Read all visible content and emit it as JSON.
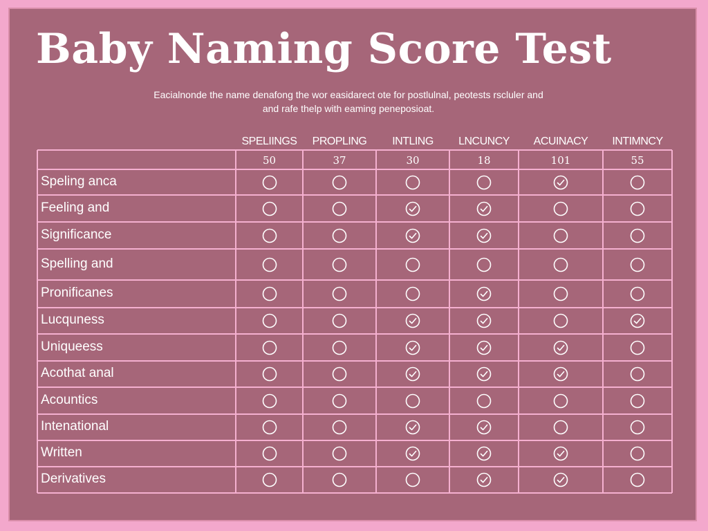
{
  "page": {
    "title": "Baby Naming Score Test",
    "subtitle": "Eacialnonde the name denafong the wor easidarect ote for postlulnal, peotests rscluler and and rafe thelp with eaming peneposioat."
  },
  "table": {
    "columns": [
      "SPELIINGS",
      "PROPLING",
      "INTLING",
      "LNCUNCY",
      "ACUINACY",
      "INTIMNCY"
    ],
    "scores": [
      "50",
      "37",
      "30",
      "18",
      "101",
      "55"
    ],
    "rows": [
      {
        "label": "Speling anca",
        "marks": [
          false,
          false,
          false,
          false,
          true,
          false
        ]
      },
      {
        "label": "Feeling and",
        "marks": [
          false,
          false,
          true,
          true,
          false,
          false
        ]
      },
      {
        "label": "Significance",
        "marks": [
          false,
          false,
          true,
          true,
          false,
          false
        ]
      },
      {
        "label": "Spelling and",
        "marks": [
          false,
          false,
          false,
          false,
          false,
          false
        ]
      },
      {
        "label": "Pronificanes",
        "marks": [
          false,
          false,
          false,
          true,
          false,
          false
        ]
      },
      {
        "label": "Lucquness",
        "marks": [
          false,
          false,
          true,
          true,
          false,
          true
        ]
      },
      {
        "label": "Uniqueess",
        "marks": [
          false,
          false,
          true,
          true,
          true,
          false
        ]
      },
      {
        "label": "Acothat anal",
        "marks": [
          false,
          false,
          true,
          true,
          true,
          false
        ]
      },
      {
        "label": "Acountics",
        "marks": [
          false,
          false,
          false,
          false,
          false,
          false
        ]
      },
      {
        "label": "Intenational",
        "marks": [
          false,
          false,
          true,
          true,
          false,
          false
        ]
      },
      {
        "label": "Written",
        "marks": [
          false,
          false,
          true,
          true,
          true,
          false
        ]
      },
      {
        "label": "Derivatives",
        "marks": [
          false,
          false,
          false,
          true,
          true,
          false
        ]
      }
    ]
  },
  "colors": {
    "background": "#f3a8cc",
    "panel": "#a66679",
    "grid_line": "#f5b0d0",
    "text": "#ffffff"
  },
  "icons": {
    "checked": "check-circle-icon",
    "unchecked": "empty-circle-icon"
  }
}
